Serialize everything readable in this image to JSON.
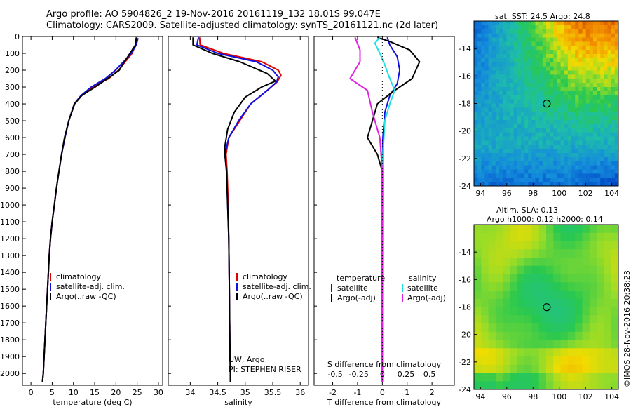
{
  "header": {
    "line1": "Argo profile: AO 5904826_2 19-Nov-2016 20161119_132 18.01S 99.047E",
    "line2": "Climatology: CARS2009. Satellite-adjusted climatology: synTS_20161121.nc (2d later)"
  },
  "colors": {
    "climatology": "#e00000",
    "satellite": "#1010e0",
    "argo": "#000000",
    "sal_satellite": "#20e0e0",
    "sal_argo": "#e020e0"
  },
  "chart_data": [
    {
      "type": "line",
      "name": "temperature-profile",
      "xlabel": "temperature (deg C)",
      "xlim": [
        -2,
        31
      ],
      "ylim": [
        2070,
        0
      ],
      "xticks": [
        0,
        5,
        10,
        15,
        20,
        25,
        30
      ],
      "yticks": [
        0,
        100,
        200,
        300,
        400,
        500,
        600,
        700,
        800,
        900,
        1000,
        1100,
        1200,
        1300,
        1400,
        1500,
        1600,
        1700,
        1800,
        1900,
        2000
      ],
      "legend": [
        "climatology",
        "satellite-adj. clim.",
        "Argo(..raw -QC)"
      ],
      "series": [
        {
          "name": "climatology",
          "color_key": "climatology",
          "points": [
            [
              25,
              10
            ],
            [
              24.6,
              50
            ],
            [
              23.8,
              100
            ],
            [
              22.2,
              150
            ],
            [
              20.6,
              200
            ],
            [
              18.3,
              250
            ],
            [
              14.5,
              300
            ],
            [
              11.8,
              350
            ],
            [
              10.2,
              400
            ],
            [
              8.9,
              500
            ],
            [
              8,
              600
            ],
            [
              7.2,
              700
            ],
            [
              6.6,
              800
            ],
            [
              6,
              900
            ],
            [
              5.5,
              1000
            ],
            [
              5,
              1100
            ],
            [
              4.6,
              1200
            ],
            [
              4.3,
              1300
            ],
            [
              4.1,
              1400
            ],
            [
              3.9,
              1500
            ],
            [
              3.7,
              1600
            ],
            [
              3.5,
              1700
            ],
            [
              3.3,
              1800
            ],
            [
              3.1,
              1900
            ],
            [
              2.9,
              2000
            ],
            [
              2.7,
              2050
            ]
          ]
        },
        {
          "name": "satellite-adj. clim.",
          "color_key": "satellite",
          "points": [
            [
              25.2,
              10
            ],
            [
              24.8,
              50
            ],
            [
              23.6,
              100
            ],
            [
              21.8,
              150
            ],
            [
              19.9,
              200
            ],
            [
              17.5,
              250
            ],
            [
              14.2,
              300
            ],
            [
              11.8,
              350
            ],
            [
              10.2,
              400
            ],
            [
              8.9,
              500
            ],
            [
              8,
              600
            ],
            [
              7.2,
              700
            ],
            [
              6.6,
              800
            ],
            [
              6,
              900
            ],
            [
              5.5,
              1000
            ],
            [
              5,
              1100
            ],
            [
              4.6,
              1200
            ],
            [
              4.3,
              1300
            ],
            [
              4.1,
              1400
            ],
            [
              3.9,
              1500
            ],
            [
              3.7,
              1600
            ],
            [
              3.5,
              1700
            ],
            [
              3.3,
              1800
            ],
            [
              3.1,
              1900
            ],
            [
              2.9,
              2000
            ],
            [
              2.7,
              2050
            ]
          ]
        },
        {
          "name": "Argo(..raw -QC)",
          "color_key": "argo",
          "points": [
            [
              24.8,
              5
            ],
            [
              24.6,
              50
            ],
            [
              23.3,
              100
            ],
            [
              22,
              150
            ],
            [
              20.8,
              200
            ],
            [
              18,
              250
            ],
            [
              15.1,
              300
            ],
            [
              12,
              350
            ],
            [
              10.3,
              400
            ],
            [
              8.9,
              500
            ],
            [
              7.9,
              600
            ],
            [
              7.2,
              700
            ],
            [
              6.6,
              800
            ],
            [
              6,
              900
            ],
            [
              5.5,
              1000
            ],
            [
              5,
              1100
            ],
            [
              4.6,
              1200
            ],
            [
              4.3,
              1300
            ],
            [
              4.1,
              1400
            ],
            [
              3.9,
              1500
            ],
            [
              3.7,
              1600
            ],
            [
              3.5,
              1700
            ],
            [
              3.3,
              1800
            ],
            [
              3.1,
              1900
            ],
            [
              2.9,
              2000
            ],
            [
              2.7,
              2050
            ]
          ]
        }
      ]
    },
    {
      "type": "line",
      "name": "salinity-profile",
      "xlabel": "salinity",
      "xlim": [
        33.6,
        36.15
      ],
      "ylim": [
        2070,
        0
      ],
      "xticks": [
        34,
        34.5,
        35,
        35.5,
        36
      ],
      "legend": [
        "climatology",
        "satellite-adj. clim.",
        "Argo(..raw -QC)"
      ],
      "notes": [
        "UW, Argo",
        "PI: STEPHEN RISER"
      ],
      "series": [
        {
          "name": "climatology",
          "color_key": "climatology",
          "points": [
            [
              34.17,
              5
            ],
            [
              34.18,
              50
            ],
            [
              34.6,
              100
            ],
            [
              35.3,
              150
            ],
            [
              35.6,
              200
            ],
            [
              35.65,
              230
            ],
            [
              35.58,
              270
            ],
            [
              35.4,
              320
            ],
            [
              35.1,
              400
            ],
            [
              34.9,
              500
            ],
            [
              34.7,
              600
            ],
            [
              34.65,
              700
            ],
            [
              34.67,
              800
            ],
            [
              34.69,
              1000
            ],
            [
              34.7,
              1200
            ],
            [
              34.71,
              1500
            ],
            [
              34.72,
              1800
            ],
            [
              34.73,
              2000
            ],
            [
              34.73,
              2050
            ]
          ]
        },
        {
          "name": "satellite-adj. clim.",
          "color_key": "satellite",
          "points": [
            [
              34.15,
              5
            ],
            [
              34.12,
              50
            ],
            [
              34.5,
              100
            ],
            [
              35.2,
              150
            ],
            [
              35.5,
              200
            ],
            [
              35.6,
              240
            ],
            [
              35.57,
              270
            ],
            [
              35.4,
              320
            ],
            [
              35.1,
              400
            ],
            [
              34.88,
              500
            ],
            [
              34.7,
              600
            ],
            [
              34.63,
              700
            ],
            [
              34.66,
              800
            ],
            [
              34.68,
              1000
            ],
            [
              34.7,
              1200
            ],
            [
              34.71,
              1500
            ],
            [
              34.72,
              1800
            ],
            [
              34.73,
              2000
            ],
            [
              34.73,
              2050
            ]
          ]
        },
        {
          "name": "Argo(..raw -QC)",
          "color_key": "argo",
          "points": [
            [
              34.05,
              5
            ],
            [
              34.05,
              50
            ],
            [
              34.4,
              100
            ],
            [
              34.9,
              150
            ],
            [
              35.4,
              220
            ],
            [
              35.55,
              265
            ],
            [
              35.3,
              300
            ],
            [
              35,
              360
            ],
            [
              34.8,
              450
            ],
            [
              34.68,
              550
            ],
            [
              34.63,
              650
            ],
            [
              34.63,
              700
            ],
            [
              34.66,
              800
            ],
            [
              34.68,
              1000
            ],
            [
              34.7,
              1200
            ],
            [
              34.71,
              1500
            ],
            [
              34.72,
              1800
            ],
            [
              34.73,
              2000
            ],
            [
              34.73,
              2050
            ]
          ]
        }
      ]
    },
    {
      "type": "line",
      "name": "difference-profile",
      "xlabel": "T difference from climatology",
      "xlabel_top": "S difference from climatology",
      "xlim": [
        -2.75,
        2.9
      ],
      "ylim": [
        2070,
        0
      ],
      "xticks": [
        -2,
        -1,
        0,
        1,
        2
      ],
      "sticks": [
        {
          "label": "-0.5",
          "x": -1.9
        },
        {
          "label": "-0.25",
          "x": -0.95
        },
        {
          "label": "0",
          "x": 0
        },
        {
          "label": "0.25",
          "x": 0.95
        },
        {
          "label": "0.5",
          "x": 1.9
        }
      ],
      "legend": {
        "temperature_title": "temperature",
        "salinity_title": "salinity",
        "t_entries": [
          "satellite",
          "Argo(-adj)"
        ],
        "s_entries": [
          "satellite",
          "Argo(-adj)"
        ]
      },
      "series": [
        {
          "name": "T satellite",
          "color_key": "satellite",
          "points": [
            [
              0.2,
              5
            ],
            [
              0.3,
              50
            ],
            [
              0.6,
              120
            ],
            [
              0.7,
              200
            ],
            [
              0.6,
              280
            ],
            [
              0.3,
              350
            ],
            [
              0.1,
              450
            ],
            [
              0.02,
              600
            ],
            [
              0,
              800
            ],
            [
              0,
              2050
            ]
          ]
        },
        {
          "name": "T Argo(-adj)",
          "color_key": "argo",
          "points": [
            [
              -0.2,
              5
            ],
            [
              0.3,
              30
            ],
            [
              1.1,
              80
            ],
            [
              1.5,
              150
            ],
            [
              1.2,
              250
            ],
            [
              0.4,
              330
            ],
            [
              -0.2,
              400
            ],
            [
              -0.4,
              500
            ],
            [
              -0.6,
              600
            ],
            [
              -0.2,
              700
            ],
            [
              0,
              800
            ],
            [
              0,
              2050
            ]
          ]
        },
        {
          "name": "S satellite",
          "color_key": "sal_satellite",
          "points": [
            [
              -0.1,
              5
            ],
            [
              -0.3,
              40
            ],
            [
              -0.1,
              100
            ],
            [
              0.1,
              170
            ],
            [
              0.3,
              250
            ],
            [
              0.5,
              320
            ],
            [
              0.3,
              400
            ],
            [
              0.1,
              500
            ],
            [
              0.02,
              700
            ],
            [
              0,
              2050
            ]
          ]
        },
        {
          "name": "S Argo(-adj)",
          "color_key": "sal_argo",
          "points": [
            [
              -1.1,
              5
            ],
            [
              -0.9,
              80
            ],
            [
              -0.9,
              150
            ],
            [
              -1.3,
              250
            ],
            [
              -0.6,
              320
            ],
            [
              -0.4,
              450
            ],
            [
              -0.1,
              600
            ],
            [
              0,
              800
            ],
            [
              0,
              2050
            ]
          ]
        }
      ]
    },
    {
      "type": "heatmap",
      "name": "sst-map",
      "title": "sat. SST: 24.5 Argo: 24.8",
      "xlim": [
        93.5,
        104.5
      ],
      "ylim": [
        -24,
        -12
      ],
      "xticks": [
        94,
        96,
        98,
        100,
        102,
        104
      ],
      "yticks": [
        -14,
        -16,
        -18,
        -20,
        -22,
        -24
      ],
      "argo_position": [
        99.047,
        -18.01
      ]
    },
    {
      "type": "heatmap",
      "name": "sla-map",
      "title_line1": "Altim. SLA: 0.13",
      "title_line2": "Argo h1000: 0.12 h2000: 0.14",
      "xlim": [
        93.5,
        104.5
      ],
      "ylim": [
        -24,
        -12
      ],
      "xticks": [
        94,
        96,
        98,
        100,
        102,
        104
      ],
      "yticks": [
        -14,
        -16,
        -18,
        -20,
        -22,
        -24
      ],
      "argo_position": [
        99.047,
        -18.01
      ]
    }
  ],
  "footer": {
    "credit": "©IMOS 28-Nov-2016 20:38:23"
  }
}
